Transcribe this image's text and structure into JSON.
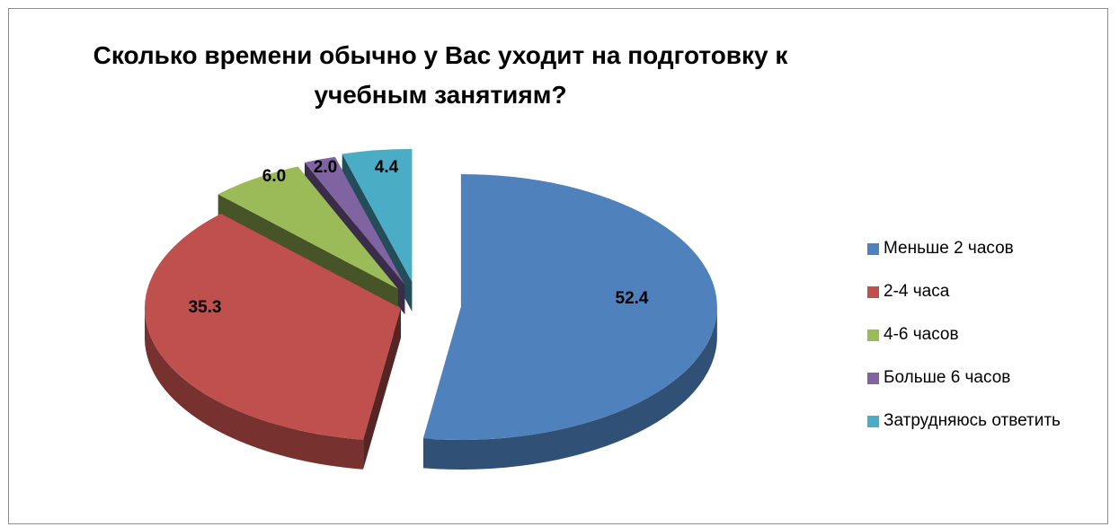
{
  "chart_data": {
    "type": "pie",
    "title_line1": "Сколько времени обычно у Вас уходит на подготовку к",
    "title_line2": "учебным занятиям?",
    "series": [
      {
        "name": "Меньше 2 часов",
        "value": 52.4,
        "label": "52.4",
        "color": "#4f81bd"
      },
      {
        "name": "2-4 часа",
        "value": 35.3,
        "label": "35.3",
        "color": "#c0504d"
      },
      {
        "name": "4-6 часов",
        "value": 6.0,
        "label": "6.0",
        "color": "#9bbb59"
      },
      {
        "name": "Больше 6 часов",
        "value": 2.0,
        "label": "2.0",
        "color": "#8064a2"
      },
      {
        "name": "Затрудняюсь ответить",
        "value": 4.4,
        "label": "4.4",
        "color": "#4bacc6"
      }
    ],
    "legend_position": "right",
    "exploded": true,
    "three_d": true
  }
}
